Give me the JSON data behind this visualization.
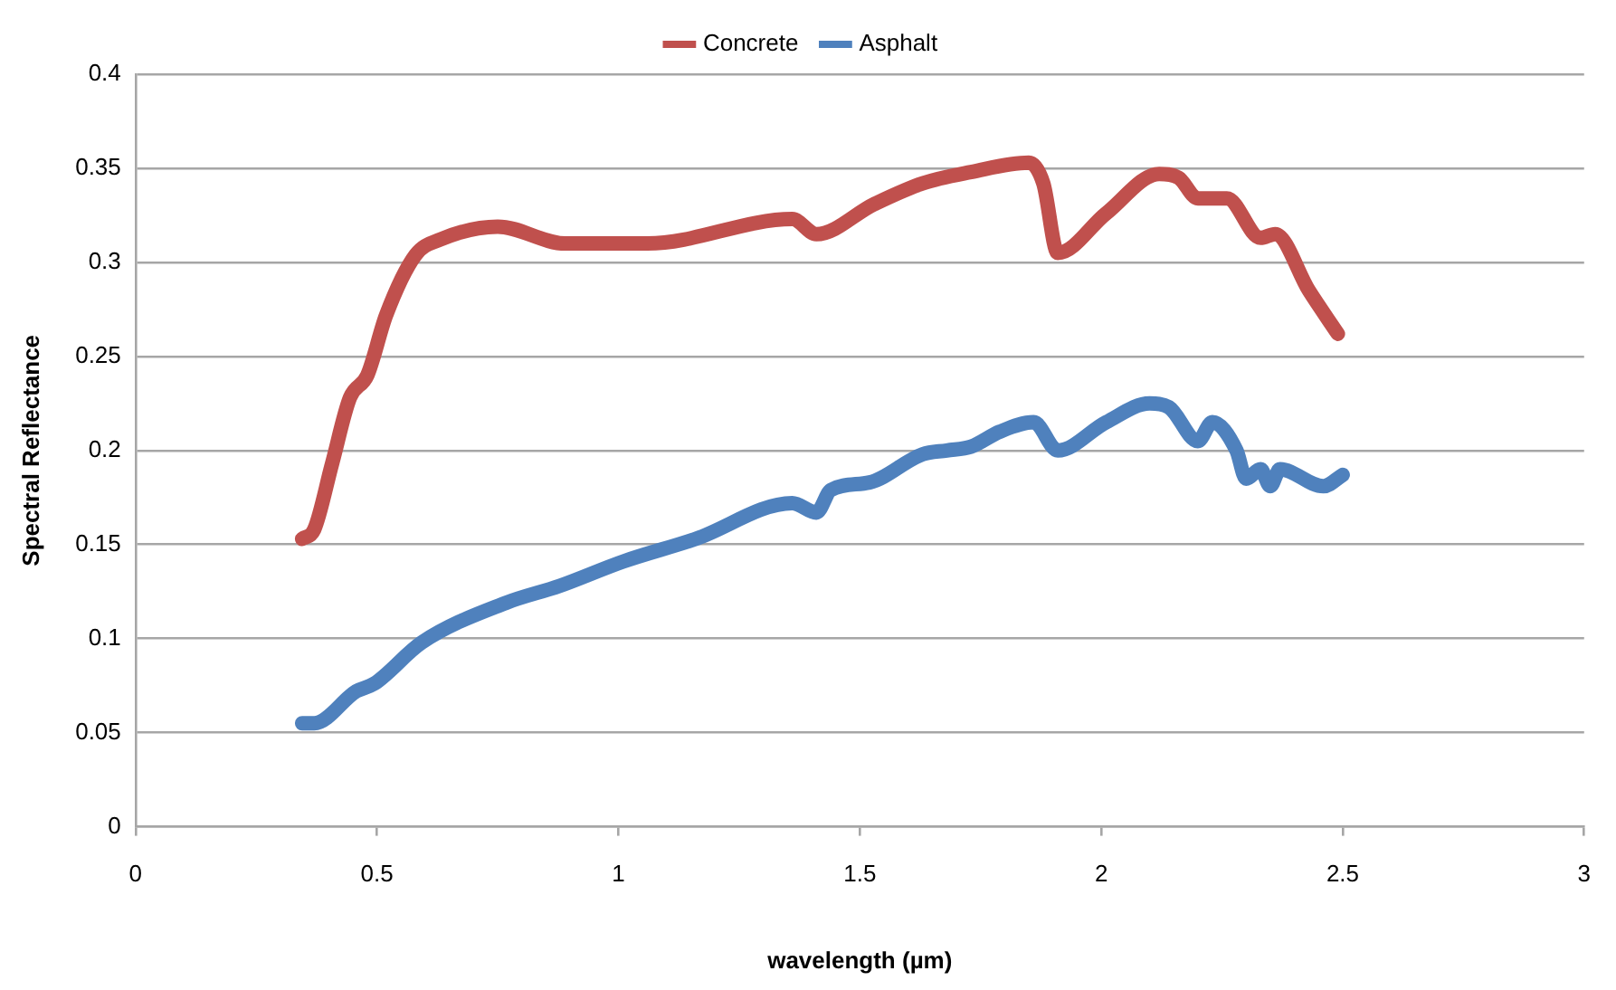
{
  "chart_data": {
    "type": "line",
    "xlabel": "wavelength (µm)",
    "ylabel": "Spectral Reflectance",
    "legend": "top",
    "grid": "y",
    "marker": "none",
    "line_style": "solid",
    "xlim": [
      0,
      3
    ],
    "xticks": [
      0,
      0.5,
      1,
      1.5,
      2,
      2.5,
      3
    ],
    "ylim": [
      0,
      0.4
    ],
    "yticks": [
      0,
      0.05,
      0.1,
      0.15,
      0.2,
      0.25,
      0.3,
      0.35,
      0.4
    ],
    "series": [
      {
        "name": "Concrete",
        "color": "#c0504d",
        "x": [
          0.345,
          0.37,
          0.407,
          0.444,
          0.48,
          0.519,
          0.58,
          0.63,
          0.75,
          0.89,
          1.06,
          1.36,
          1.41,
          1.53,
          1.63,
          1.73,
          1.85,
          1.88,
          1.91,
          2.01,
          2.12,
          2.16,
          2.2,
          2.26,
          2.33,
          2.36,
          2.43,
          2.49
        ],
        "values": [
          0.153,
          0.158,
          0.193,
          0.228,
          0.24,
          0.272,
          0.304,
          0.312,
          0.319,
          0.31,
          0.31,
          0.323,
          0.315,
          0.331,
          0.342,
          0.348,
          0.353,
          0.342,
          0.305,
          0.326,
          0.347,
          0.345,
          0.334,
          0.334,
          0.313,
          0.315,
          0.285,
          0.262
        ]
      },
      {
        "name": "Asphalt",
        "color": "#4f81bd",
        "x": [
          0.345,
          0.37,
          0.457,
          0.494,
          0.593,
          0.767,
          0.878,
          1.01,
          1.16,
          1.36,
          1.41,
          1.44,
          1.52,
          1.63,
          1.68,
          1.73,
          1.79,
          1.86,
          1.91,
          2.01,
          2.1,
          2.14,
          2.2,
          2.23,
          2.28,
          2.3,
          2.33,
          2.35,
          2.37,
          2.46,
          2.5
        ],
        "values": [
          0.055,
          0.055,
          0.072,
          0.076,
          0.098,
          0.119,
          0.128,
          0.141,
          0.153,
          0.172,
          0.167,
          0.179,
          0.183,
          0.198,
          0.2,
          0.202,
          0.21,
          0.215,
          0.2,
          0.215,
          0.225,
          0.223,
          0.205,
          0.215,
          0.2,
          0.185,
          0.19,
          0.181,
          0.19,
          0.181,
          0.187
        ]
      }
    ]
  }
}
